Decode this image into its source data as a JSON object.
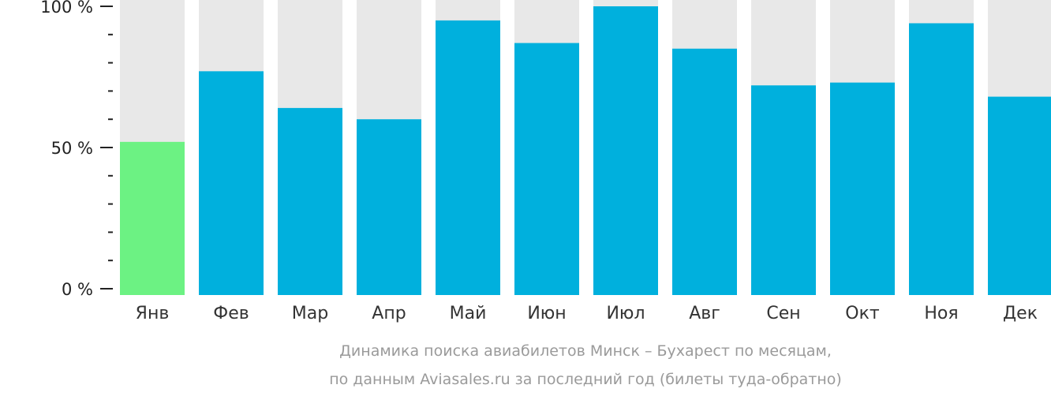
{
  "chart_data": {
    "type": "bar",
    "title": "Динамика поиска авиабилетов Минск – Бухарест по месяцам,",
    "subtitle": "по данным Aviasales.ru за последний год (билеты туда-обратно)",
    "xlabel": "",
    "ylabel": "",
    "ylim": [
      0,
      100
    ],
    "y_ticks": [
      "0 %",
      "50 %",
      "100 %"
    ],
    "categories": [
      "Янв",
      "Фев",
      "Мар",
      "Апр",
      "Май",
      "Июн",
      "Июл",
      "Авг",
      "Сен",
      "Окт",
      "Ноя",
      "Дек"
    ],
    "values": [
      52,
      77,
      64,
      60,
      95,
      87,
      100,
      85,
      72,
      73,
      94,
      68
    ],
    "highlight_index": 0,
    "colors": {
      "bar": "#00b0dd",
      "highlight": "#6cf283",
      "background": "#e8e8e8",
      "axis": "#222222"
    }
  }
}
